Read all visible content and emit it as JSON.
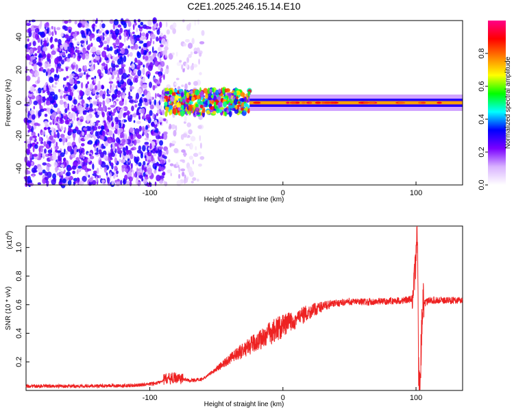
{
  "figure_title": "C2E1.2025.246.15.14.E10",
  "chart_data": [
    {
      "type": "heatmap",
      "title": "C2E1.2025.246.15.14.E10",
      "xlabel": "Height of straight line (km)",
      "ylabel": "Frequency (Hz)",
      "xlim": [
        -193,
        135
      ],
      "ylim": [
        -50,
        50
      ],
      "xticks": [
        -100,
        0,
        100
      ],
      "yticks": [
        -40,
        -20,
        0,
        20,
        40
      ],
      "colorbar": {
        "label": "Normalized spectral amplitude",
        "range": [
          0,
          1
        ],
        "ticks": [
          "0.0",
          "0.2",
          "0.4",
          "0.6",
          "0.8"
        ],
        "colors": [
          "#ffffff",
          "#d9b3ff",
          "#7a00ff",
          "#0000ff",
          "#00ffff",
          "#00ff00",
          "#ffff00",
          "#ff8000",
          "#ff0000",
          "#ff0088"
        ]
      },
      "regions": [
        {
          "name": "scattered noise",
          "x": [
            -193,
            -88
          ],
          "freq": [
            -50,
            50
          ],
          "amplitude": 0.2
        },
        {
          "name": "sparse noise",
          "x": [
            -88,
            -60
          ],
          "freq": [
            -50,
            50
          ],
          "amplitude": 0.08
        },
        {
          "name": "broadband onset",
          "x": [
            -88,
            -25
          ],
          "freq": [
            -7,
            8
          ],
          "amplitude": 0.45
        },
        {
          "name": "narrow tone",
          "x": [
            -25,
            135
          ],
          "freq": [
            -1,
            1
          ],
          "amplitude": 0.75
        }
      ]
    },
    {
      "type": "line",
      "series_name": "SNR",
      "color": "#ee2222",
      "xlabel": "Height of straight line (km)",
      "ylabel": "SNR (10 * v/v)",
      "scale_label": "(x10",
      "scale_exponent": "4",
      "xlim": [
        -193,
        135
      ],
      "ylim": [
        0,
        1.15
      ],
      "xticks": [
        -100,
        0,
        100
      ],
      "yticks": [
        "0.2",
        "0.4",
        "0.6",
        "0.8",
        "1.0"
      ],
      "points": [
        {
          "x": -193,
          "y": 0.03
        },
        {
          "x": -150,
          "y": 0.03
        },
        {
          "x": -110,
          "y": 0.035
        },
        {
          "x": -95,
          "y": 0.05
        },
        {
          "x": -88,
          "y": 0.08
        },
        {
          "x": -80,
          "y": 0.09
        },
        {
          "x": -70,
          "y": 0.07
        },
        {
          "x": -60,
          "y": 0.08
        },
        {
          "x": -50,
          "y": 0.15
        },
        {
          "x": -40,
          "y": 0.22
        },
        {
          "x": -30,
          "y": 0.28
        },
        {
          "x": -20,
          "y": 0.34
        },
        {
          "x": -10,
          "y": 0.4
        },
        {
          "x": 0,
          "y": 0.45
        },
        {
          "x": 10,
          "y": 0.5
        },
        {
          "x": 20,
          "y": 0.55
        },
        {
          "x": 30,
          "y": 0.59
        },
        {
          "x": 40,
          "y": 0.61
        },
        {
          "x": 50,
          "y": 0.62
        },
        {
          "x": 70,
          "y": 0.62
        },
        {
          "x": 90,
          "y": 0.63
        },
        {
          "x": 98,
          "y": 0.64
        },
        {
          "x": 100,
          "y": 0.95
        },
        {
          "x": 101,
          "y": 1.15
        },
        {
          "x": 102,
          "y": 0.1
        },
        {
          "x": 103,
          "y": 0.06
        },
        {
          "x": 105,
          "y": 0.6
        },
        {
          "x": 110,
          "y": 0.63
        },
        {
          "x": 120,
          "y": 0.63
        },
        {
          "x": 135,
          "y": 0.63
        }
      ]
    }
  ]
}
